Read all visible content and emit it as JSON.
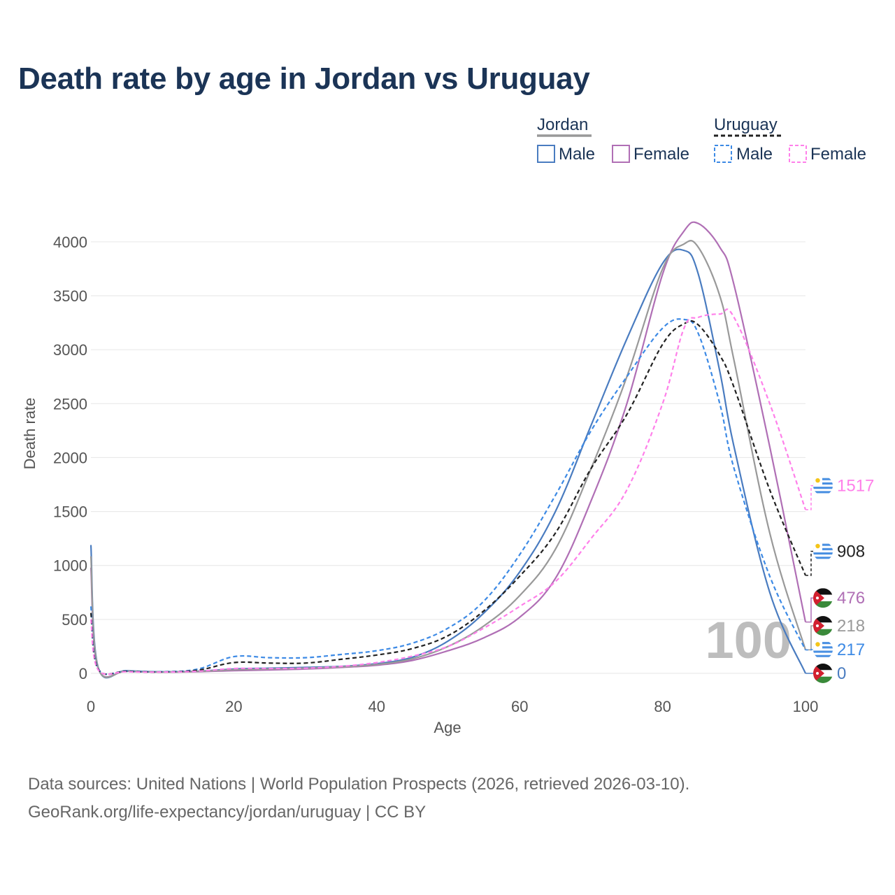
{
  "chart_data": {
    "type": "line",
    "title": "Death rate by age in Jordan vs Uruguay",
    "xlabel": "Age",
    "ylabel": "Death rate",
    "xlim": [
      0,
      100
    ],
    "ylim": [
      0,
      4200
    ],
    "x_ticks": [
      "0",
      "20",
      "40",
      "60",
      "80",
      "100"
    ],
    "y_ticks": [
      "0",
      "500",
      "1000",
      "1500",
      "2000",
      "2500",
      "3000",
      "3500",
      "4000"
    ],
    "watermark": "100",
    "legend": {
      "groups": [
        {
          "country": "Jordan",
          "items": [
            "Male",
            "Female"
          ]
        },
        {
          "country": "Uruguay",
          "items": [
            "Male",
            "Female"
          ]
        }
      ]
    },
    "x": [
      0,
      1,
      5,
      10,
      15,
      20,
      25,
      30,
      35,
      40,
      45,
      50,
      55,
      60,
      65,
      70,
      75,
      80,
      83,
      85,
      88,
      90,
      95,
      100
    ],
    "series": [
      {
        "name": "Jordan Male",
        "country": "Jordan",
        "sex": "Male",
        "color": "#4a7cc0",
        "dash": "solid",
        "values": [
          1190,
          60,
          25,
          15,
          20,
          40,
          48,
          55,
          65,
          90,
          150,
          300,
          560,
          940,
          1500,
          2300,
          3100,
          3800,
          3920,
          3700,
          2800,
          2100,
          750,
          0
        ],
        "end_label": "0",
        "flag": "jordan"
      },
      {
        "name": "Jordan Female",
        "country": "Jordan",
        "sex": "Female",
        "color": "#b06fb5",
        "dash": "solid",
        "values": [
          980,
          50,
          20,
          12,
          15,
          25,
          32,
          40,
          55,
          75,
          120,
          210,
          330,
          520,
          880,
          1600,
          2500,
          3700,
          4100,
          4170,
          3950,
          3600,
          2100,
          476
        ],
        "end_label": "476",
        "flag": "jordan"
      },
      {
        "name": "Jordan Total",
        "country": "Jordan",
        "sex": "Total",
        "color": "#999999",
        "dash": "solid",
        "values": [
          1085,
          55,
          22,
          13,
          18,
          33,
          40,
          48,
          60,
          82,
          135,
          250,
          440,
          720,
          1150,
          1900,
          2750,
          3750,
          3980,
          3950,
          3500,
          2900,
          1300,
          218
        ],
        "end_label": "218",
        "flag": "jordan"
      },
      {
        "name": "Uruguay Male",
        "country": "Uruguay",
        "sex": "Male",
        "color": "#3d8ae5",
        "dash": "dashed",
        "values": [
          620,
          45,
          20,
          15,
          40,
          155,
          145,
          145,
          175,
          210,
          280,
          420,
          670,
          1100,
          1650,
          2250,
          2750,
          3200,
          3280,
          3150,
          2500,
          1900,
          900,
          217
        ],
        "end_label": "217",
        "flag": "uruguay"
      },
      {
        "name": "Uruguay Total",
        "country": "Uruguay",
        "sex": "Total",
        "color": "#222222",
        "dash": "dashed",
        "values": [
          560,
          40,
          18,
          13,
          30,
          100,
          95,
          95,
          130,
          170,
          230,
          350,
          580,
          900,
          1300,
          1900,
          2400,
          3050,
          3240,
          3230,
          2950,
          2650,
          1700,
          908
        ],
        "end_label": "908",
        "flag": "uruguay"
      },
      {
        "name": "Uruguay Female",
        "country": "Uruguay",
        "sex": "Female",
        "color": "#ff80ea",
        "dash": "dashed",
        "values": [
          500,
          35,
          15,
          12,
          20,
          45,
          45,
          48,
          65,
          100,
          160,
          250,
          420,
          620,
          850,
          1250,
          1700,
          2500,
          3200,
          3300,
          3330,
          3300,
          2500,
          1517
        ],
        "end_label": "1517",
        "flag": "uruguay"
      }
    ]
  },
  "footer": {
    "line1": "Data sources: United Nations | World Population Prospects (2026, retrieved 2026-03-10).",
    "line2": "GeoRank.org/life-expectancy/jordan/uruguay | CC BY"
  }
}
